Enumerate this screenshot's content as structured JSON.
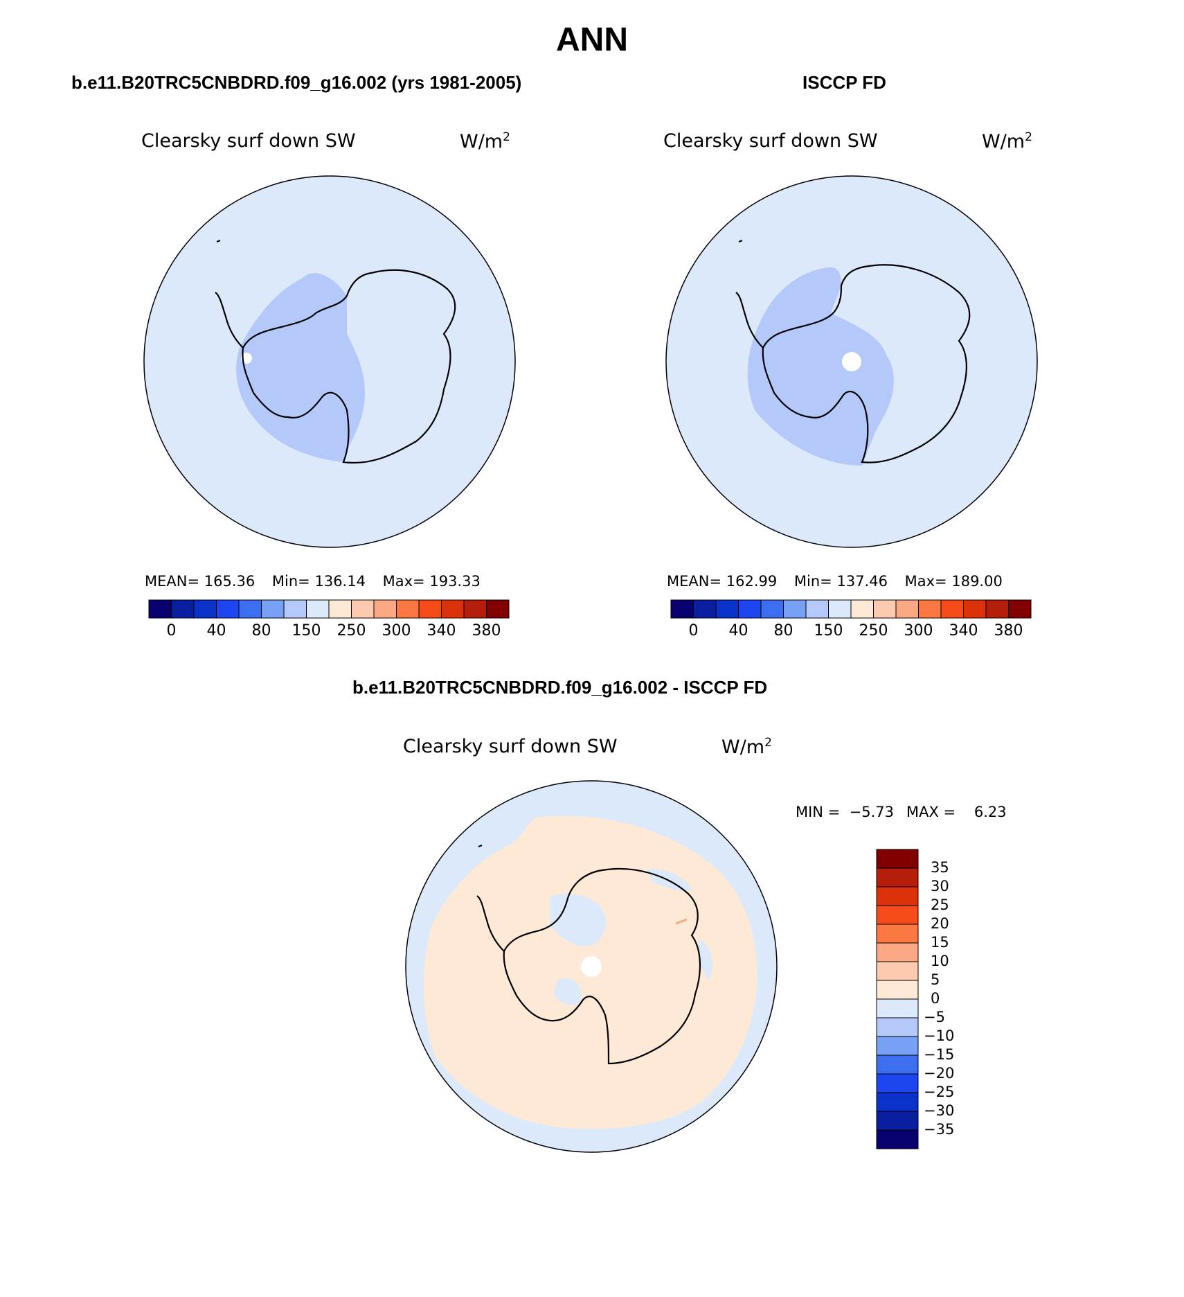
{
  "title": "ANN",
  "panels": [
    {
      "id": "model",
      "case_title": "b.e11.B20TRC5CNBDRD.f09_g16.002 (yrs 1981-2005)",
      "plot_title": "Clearsky surf down SW",
      "units": "W/m",
      "units_sup": "2",
      "stats": {
        "mean_label": "MEAN=",
        "mean": "165.36",
        "min_label": "Min=",
        "min": "136.14",
        "max_label": "Max=",
        "max": "193.33"
      }
    },
    {
      "id": "obs",
      "case_title": "ISCCP FD",
      "plot_title": "Clearsky surf down SW",
      "units": "W/m",
      "units_sup": "2",
      "stats": {
        "mean_label": "MEAN=",
        "mean": "162.99",
        "min_label": "Min=",
        "min": "137.46",
        "max_label": "Max=",
        "max": "189.00"
      }
    },
    {
      "id": "diff",
      "case_title": "b.e11.B20TRC5CNBDRD.f09_g16.002 - ISCCP FD",
      "plot_title": "Clearsky surf down SW",
      "units": "W/m",
      "units_sup": "2",
      "stats": {
        "min_label": "MIN =",
        "min": "−5.73",
        "max_label": "MAX =",
        "max": "6.23"
      }
    }
  ],
  "abs_colorbar": {
    "colors": [
      "#08006e",
      "#0a1ea0",
      "#0a32c8",
      "#1e46f0",
      "#3c6ef0",
      "#78a0f5",
      "#b4c8fa",
      "#dce9fb",
      "#fde9d6",
      "#fccbaf",
      "#fba984",
      "#fb7842",
      "#f54b19",
      "#dc320a",
      "#b41e0a",
      "#820000"
    ],
    "labels": [
      "0",
      "40",
      "80",
      "150",
      "250",
      "300",
      "340",
      "380"
    ]
  },
  "diff_colorbar": {
    "colors_top_to_bottom": [
      "#820000",
      "#b41e0a",
      "#dc320a",
      "#f54b19",
      "#fb7842",
      "#fba984",
      "#fccbaf",
      "#fde9d6",
      "#dce9fb",
      "#b4c8fa",
      "#78a0f5",
      "#3c6ef0",
      "#1e46f0",
      "#0a32c8",
      "#0a1ea0",
      "#08006e"
    ],
    "labels": [
      "35",
      "30",
      "25",
      "20",
      "15",
      "10",
      "5",
      "0",
      "−5",
      "−10",
      "−15",
      "−20",
      "−25",
      "−30",
      "−35"
    ]
  },
  "map_colors": {
    "ocean_abs": "#dce9fb",
    "low_abs": "#b4c8fa",
    "ocean_diff": "#dce9fb",
    "positive_diff": "#fde9d6",
    "missing": "#ffffff",
    "coast": "#000000"
  }
}
